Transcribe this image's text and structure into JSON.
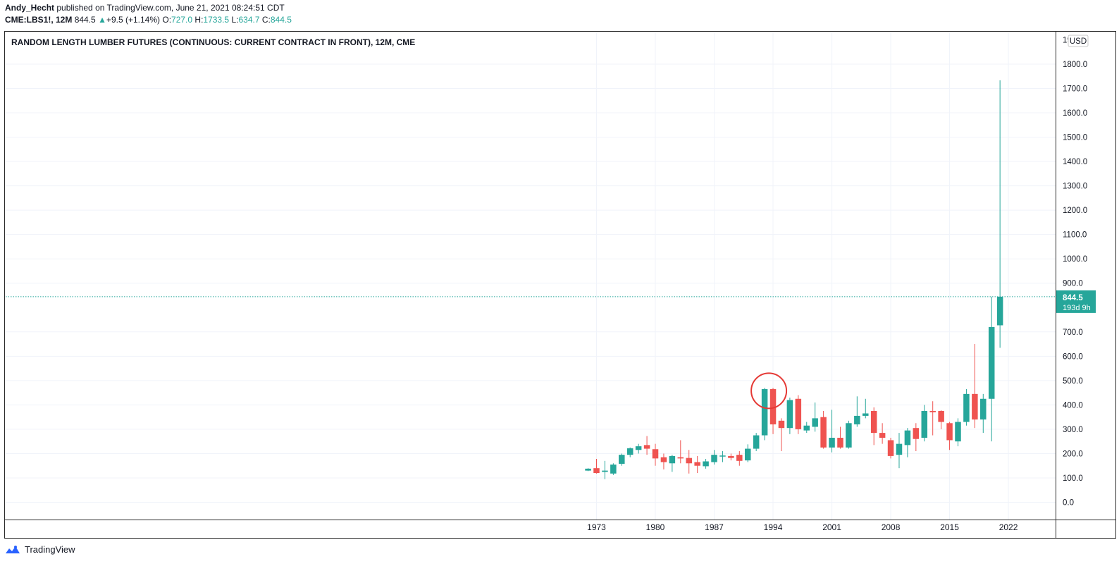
{
  "header": {
    "author": "Andy_Hecht",
    "published_text": "published on TradingView.com, June 21, 2021 08:24:51 CDT",
    "symbol": "CME:LBS1!, 12M",
    "last": "844.5",
    "change_arrow": "▲",
    "change": "+9.5 (+1.14%)",
    "o_label": "O:",
    "o_value": "727.0",
    "h_label": "H:",
    "h_value": "1733.5",
    "l_label": "L:",
    "l_value": "634.7",
    "c_label": "C:",
    "c_value": "844.5"
  },
  "footer": {
    "brand": "TradingView"
  },
  "colors": {
    "up": "#26a69a",
    "down": "#ef5350",
    "grid": "#f0f3fa",
    "highlight": "#e53935"
  },
  "chart_data": {
    "type": "candlestick",
    "title": "RANDOM LENGTH LUMBER FUTURES (CONTINUOUS: CURRENT CONTRACT IN FRONT), 12M, CME",
    "currency": "USD",
    "ylim": [
      -60,
      1900
    ],
    "yticks": [
      "0.0",
      "100.0",
      "200.0",
      "300.0",
      "400.0",
      "500.0",
      "600.0",
      "700.0",
      "900.0",
      "1000.0",
      "1100.0",
      "1200.0",
      "1300.0",
      "1400.0",
      "1500.0",
      "1600.0",
      "1700.0",
      "1800.0"
    ],
    "xticks": [
      "1973",
      "1980",
      "1987",
      "1994",
      "2001",
      "2008",
      "2015",
      "2022"
    ],
    "xlim": [
      1963,
      2028
    ],
    "last_price": {
      "value": "844.5",
      "countdown": "193d 9h"
    },
    "highlight_year": 1993,
    "candles": [
      {
        "year": 1972,
        "o": 130,
        "h": 140,
        "l": 128,
        "c": 138
      },
      {
        "year": 1973,
        "o": 140,
        "h": 178,
        "l": 118,
        "c": 120
      },
      {
        "year": 1974,
        "o": 125,
        "h": 170,
        "l": 95,
        "c": 130
      },
      {
        "year": 1975,
        "o": 118,
        "h": 160,
        "l": 112,
        "c": 155
      },
      {
        "year": 1976,
        "o": 158,
        "h": 200,
        "l": 150,
        "c": 195
      },
      {
        "year": 1977,
        "o": 195,
        "h": 225,
        "l": 185,
        "c": 222
      },
      {
        "year": 1978,
        "o": 215,
        "h": 240,
        "l": 200,
        "c": 230
      },
      {
        "year": 1979,
        "o": 235,
        "h": 272,
        "l": 195,
        "c": 220
      },
      {
        "year": 1980,
        "o": 218,
        "h": 240,
        "l": 150,
        "c": 180
      },
      {
        "year": 1981,
        "o": 185,
        "h": 200,
        "l": 135,
        "c": 165
      },
      {
        "year": 1982,
        "o": 160,
        "h": 195,
        "l": 125,
        "c": 190
      },
      {
        "year": 1983,
        "o": 185,
        "h": 255,
        "l": 160,
        "c": 180
      },
      {
        "year": 1984,
        "o": 182,
        "h": 215,
        "l": 118,
        "c": 160
      },
      {
        "year": 1985,
        "o": 165,
        "h": 190,
        "l": 120,
        "c": 150
      },
      {
        "year": 1986,
        "o": 148,
        "h": 178,
        "l": 138,
        "c": 168
      },
      {
        "year": 1987,
        "o": 165,
        "h": 215,
        "l": 155,
        "c": 195
      },
      {
        "year": 1988,
        "o": 190,
        "h": 210,
        "l": 165,
        "c": 192
      },
      {
        "year": 1989,
        "o": 190,
        "h": 200,
        "l": 172,
        "c": 182
      },
      {
        "year": 1990,
        "o": 195,
        "h": 210,
        "l": 150,
        "c": 170
      },
      {
        "year": 1991,
        "o": 172,
        "h": 238,
        "l": 165,
        "c": 220
      },
      {
        "year": 1992,
        "o": 220,
        "h": 285,
        "l": 210,
        "c": 275
      },
      {
        "year": 1993,
        "o": 275,
        "h": 470,
        "l": 255,
        "c": 465
      },
      {
        "year": 1994,
        "o": 465,
        "h": 470,
        "l": 280,
        "c": 320
      },
      {
        "year": 1995,
        "o": 335,
        "h": 345,
        "l": 210,
        "c": 305
      },
      {
        "year": 1996,
        "o": 305,
        "h": 430,
        "l": 280,
        "c": 420
      },
      {
        "year": 1997,
        "o": 425,
        "h": 440,
        "l": 280,
        "c": 300
      },
      {
        "year": 1998,
        "o": 295,
        "h": 330,
        "l": 285,
        "c": 315
      },
      {
        "year": 1999,
        "o": 310,
        "h": 410,
        "l": 290,
        "c": 345
      },
      {
        "year": 2000,
        "o": 350,
        "h": 375,
        "l": 220,
        "c": 225
      },
      {
        "year": 2001,
        "o": 225,
        "h": 380,
        "l": 205,
        "c": 265
      },
      {
        "year": 2002,
        "o": 265,
        "h": 310,
        "l": 220,
        "c": 225
      },
      {
        "year": 2003,
        "o": 225,
        "h": 335,
        "l": 220,
        "c": 325
      },
      {
        "year": 2004,
        "o": 320,
        "h": 435,
        "l": 310,
        "c": 355
      },
      {
        "year": 2005,
        "o": 355,
        "h": 425,
        "l": 345,
        "c": 365
      },
      {
        "year": 2006,
        "o": 375,
        "h": 390,
        "l": 235,
        "c": 285
      },
      {
        "year": 2007,
        "o": 285,
        "h": 325,
        "l": 240,
        "c": 265
      },
      {
        "year": 2008,
        "o": 255,
        "h": 265,
        "l": 180,
        "c": 190
      },
      {
        "year": 2009,
        "o": 195,
        "h": 285,
        "l": 140,
        "c": 240
      },
      {
        "year": 2010,
        "o": 235,
        "h": 305,
        "l": 185,
        "c": 295
      },
      {
        "year": 2011,
        "o": 305,
        "h": 325,
        "l": 210,
        "c": 260
      },
      {
        "year": 2012,
        "o": 265,
        "h": 400,
        "l": 250,
        "c": 375
      },
      {
        "year": 2013,
        "o": 375,
        "h": 415,
        "l": 275,
        "c": 370
      },
      {
        "year": 2014,
        "o": 375,
        "h": 378,
        "l": 300,
        "c": 330
      },
      {
        "year": 2015,
        "o": 325,
        "h": 330,
        "l": 215,
        "c": 255
      },
      {
        "year": 2016,
        "o": 250,
        "h": 345,
        "l": 230,
        "c": 330
      },
      {
        "year": 2017,
        "o": 330,
        "h": 465,
        "l": 315,
        "c": 445
      },
      {
        "year": 2018,
        "o": 445,
        "h": 650,
        "l": 305,
        "c": 340
      },
      {
        "year": 2019,
        "o": 340,
        "h": 445,
        "l": 285,
        "c": 425
      },
      {
        "year": 2020,
        "o": 425,
        "h": 845,
        "l": 250,
        "c": 720
      },
      {
        "year": 2021,
        "o": 727,
        "h": 1733.5,
        "l": 634.7,
        "c": 844.5
      }
    ]
  }
}
